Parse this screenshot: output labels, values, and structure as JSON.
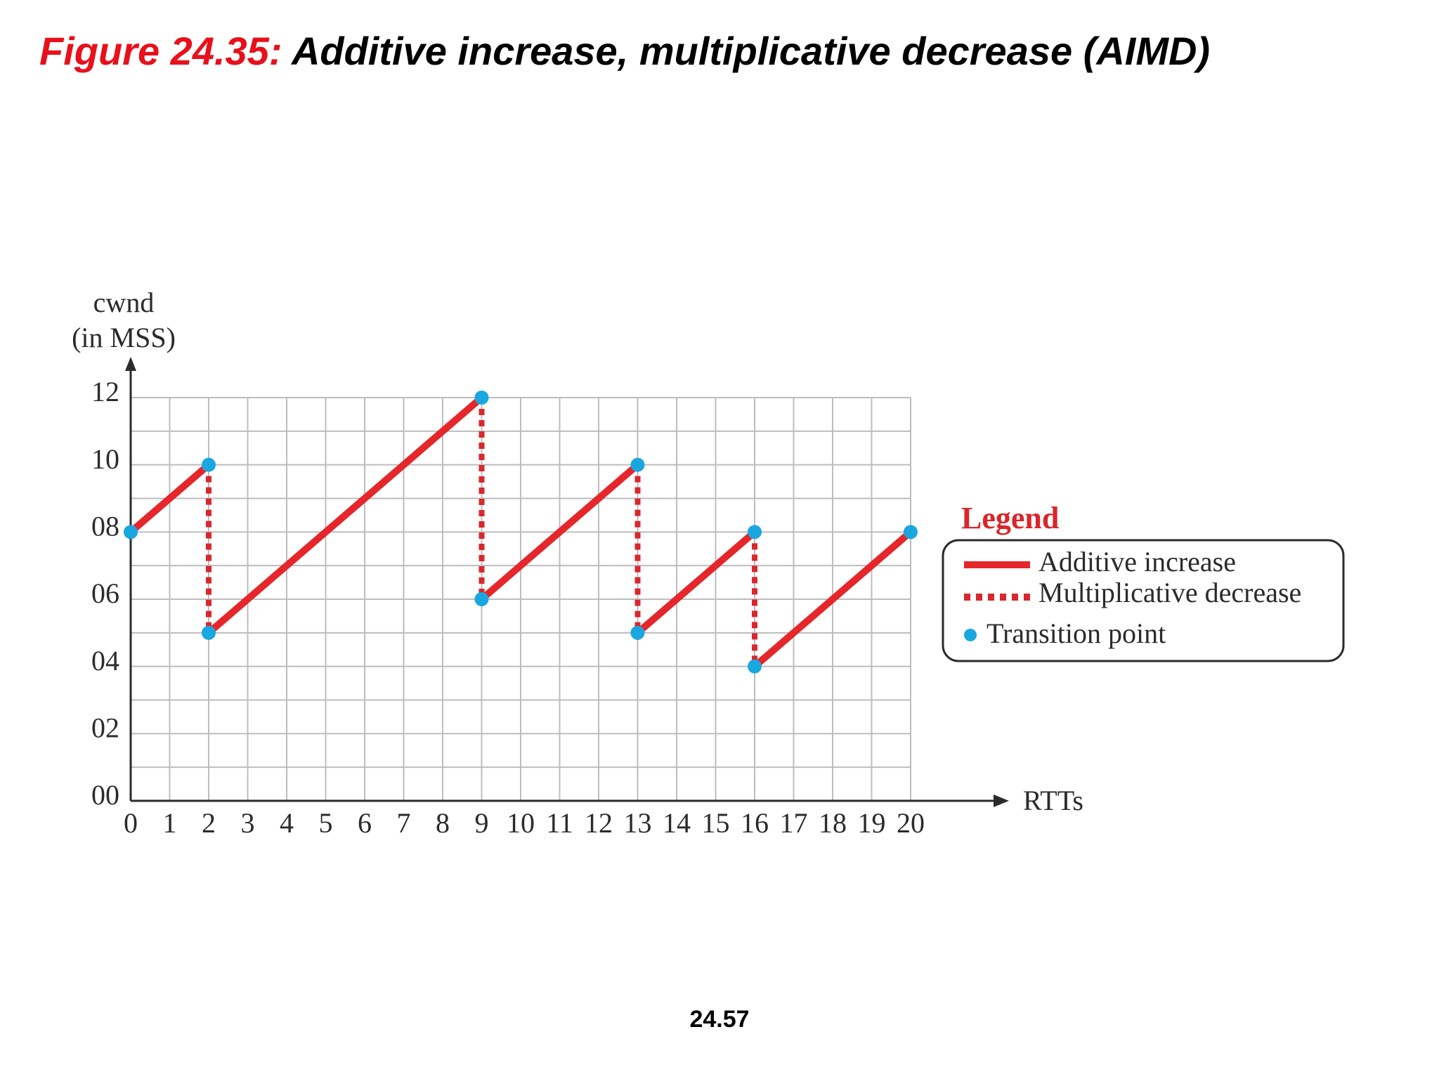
{
  "slide": {
    "figure_label": "Figure 24.35:",
    "figure_title": "Additive increase, multiplicative decrease (AIMD)",
    "page_number": "24.57"
  },
  "chart_data": {
    "type": "line",
    "ylabel_line1": "cwnd",
    "ylabel_line2": "(in MSS)",
    "xlabel": "RTTs",
    "xlim": [
      0,
      20
    ],
    "ylim": [
      0,
      12
    ],
    "x_ticks": [
      "0",
      "1",
      "2",
      "3",
      "4",
      "5",
      "6",
      "7",
      "8",
      "9",
      "10",
      "11",
      "12",
      "13",
      "14",
      "15",
      "16",
      "17",
      "18",
      "19",
      "20"
    ],
    "y_ticks": [
      {
        "value": 0,
        "label": "00"
      },
      {
        "value": 2,
        "label": "02"
      },
      {
        "value": 4,
        "label": "04"
      },
      {
        "value": 6,
        "label": "06"
      },
      {
        "value": 8,
        "label": "08"
      },
      {
        "value": 10,
        "label": "10"
      },
      {
        "value": 12,
        "label": "12"
      }
    ],
    "grid": true,
    "colors": {
      "increase": "#e5262b",
      "decrease": "#d9272e",
      "transition": "#1aa7e0",
      "grid": "#bdbdbd",
      "legend_title": "#d9262b"
    },
    "series": [
      {
        "name": "Additive increase",
        "style": "solid",
        "segments": [
          [
            [
              0,
              8
            ],
            [
              2,
              10
            ]
          ],
          [
            [
              2,
              5
            ],
            [
              9,
              12
            ]
          ],
          [
            [
              9,
              6
            ],
            [
              13,
              10
            ]
          ],
          [
            [
              13,
              5
            ],
            [
              16,
              8
            ]
          ],
          [
            [
              16,
              4
            ],
            [
              20,
              8
            ]
          ]
        ]
      },
      {
        "name": "Multiplicative decrease",
        "style": "dotted",
        "segments": [
          [
            [
              2,
              10
            ],
            [
              2,
              5
            ]
          ],
          [
            [
              9,
              12
            ],
            [
              9,
              6
            ]
          ],
          [
            [
              13,
              10
            ],
            [
              13,
              5
            ]
          ],
          [
            [
              16,
              8
            ],
            [
              16,
              4
            ]
          ]
        ]
      },
      {
        "name": "Transition point",
        "style": "marker",
        "points": [
          [
            0,
            8
          ],
          [
            2,
            10
          ],
          [
            2,
            5
          ],
          [
            9,
            12
          ],
          [
            9,
            6
          ],
          [
            13,
            10
          ],
          [
            13,
            5
          ],
          [
            16,
            8
          ],
          [
            16,
            4
          ],
          [
            20,
            8
          ]
        ]
      }
    ],
    "legend": {
      "title": "Legend",
      "position": "right",
      "items": [
        "Additive increase",
        "Multiplicative decrease",
        "Transition point"
      ]
    }
  }
}
